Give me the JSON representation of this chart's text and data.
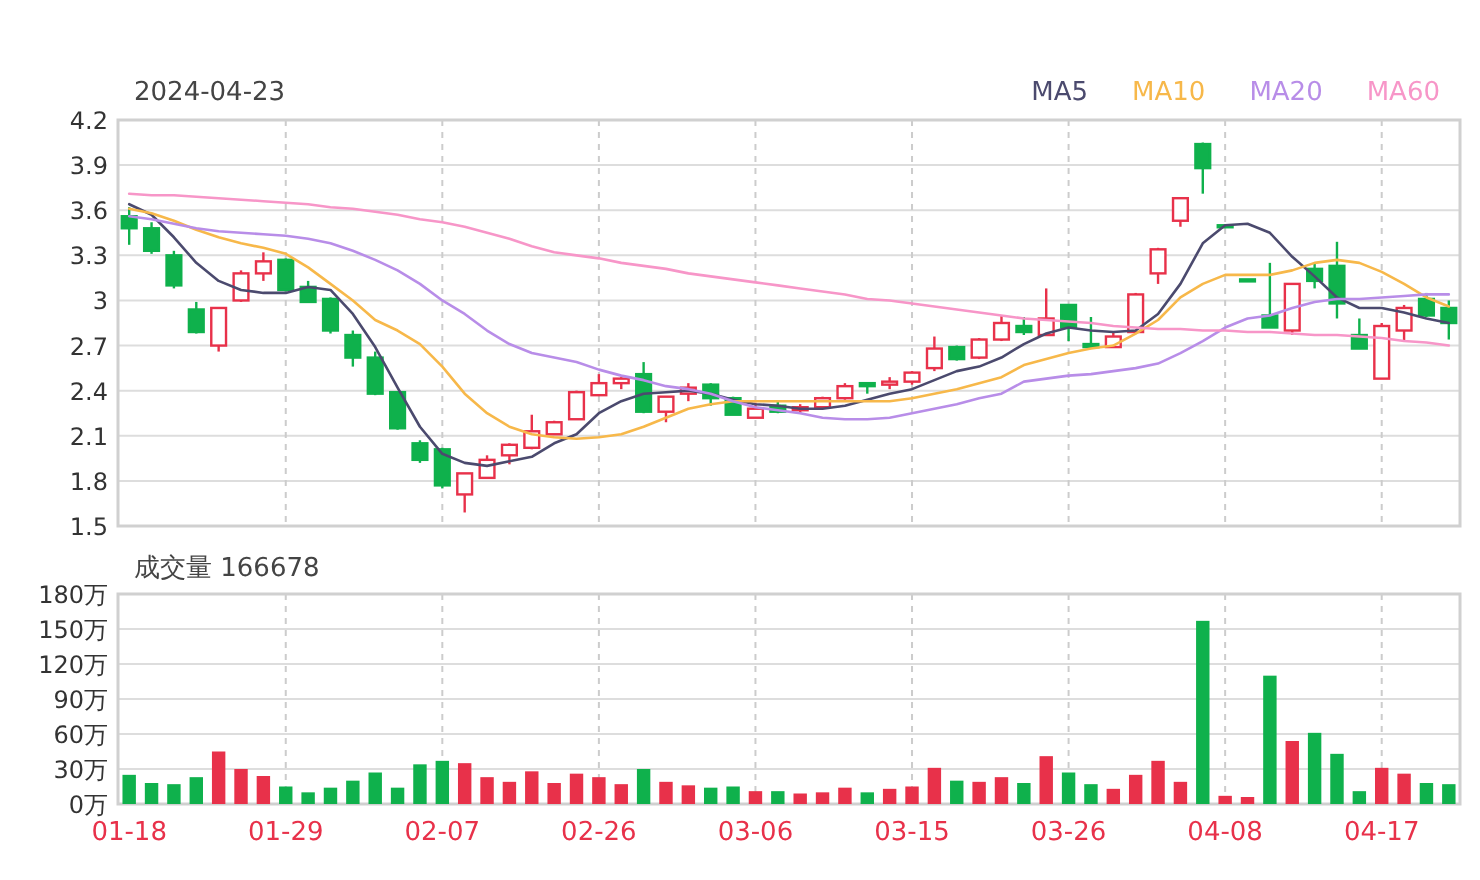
{
  "chart_data": [
    {
      "type": "candlestick",
      "title": "2024-04-23",
      "tick_labels": "y",
      "grid": true,
      "legend": "top right",
      "ohlc": [
        [
          3.56,
          3.62,
          3.37,
          3.48
        ],
        [
          3.48,
          3.52,
          3.31,
          3.33
        ],
        [
          3.3,
          3.33,
          3.08,
          3.1
        ],
        [
          2.94,
          2.99,
          2.78,
          2.79
        ],
        [
          2.7,
          2.95,
          2.66,
          2.95
        ],
        [
          3.0,
          3.2,
          2.99,
          3.18
        ],
        [
          3.18,
          3.32,
          3.13,
          3.26
        ],
        [
          3.27,
          3.28,
          3.06,
          3.07
        ],
        [
          3.09,
          3.13,
          2.99,
          2.99
        ],
        [
          3.01,
          3.02,
          2.78,
          2.8
        ],
        [
          2.77,
          2.8,
          2.56,
          2.62
        ],
        [
          2.62,
          2.66,
          2.37,
          2.38
        ],
        [
          2.39,
          2.39,
          2.14,
          2.15
        ],
        [
          2.05,
          2.07,
          1.92,
          1.94
        ],
        [
          2.01,
          2.02,
          1.75,
          1.77
        ],
        [
          1.71,
          1.85,
          1.59,
          1.85
        ],
        [
          1.82,
          1.97,
          1.82,
          1.94
        ],
        [
          1.97,
          2.05,
          1.91,
          2.04
        ],
        [
          2.02,
          2.24,
          2.01,
          2.13
        ],
        [
          2.11,
          2.2,
          2.11,
          2.19
        ],
        [
          2.21,
          2.4,
          2.21,
          2.39
        ],
        [
          2.37,
          2.51,
          2.37,
          2.45
        ],
        [
          2.45,
          2.49,
          2.41,
          2.48
        ],
        [
          2.51,
          2.59,
          2.25,
          2.26
        ],
        [
          2.26,
          2.36,
          2.19,
          2.36
        ],
        [
          2.38,
          2.45,
          2.33,
          2.42
        ],
        [
          2.44,
          2.45,
          2.3,
          2.35
        ],
        [
          2.35,
          2.36,
          2.24,
          2.24
        ],
        [
          2.22,
          2.32,
          2.22,
          2.28
        ],
        [
          2.3,
          2.33,
          2.25,
          2.26
        ],
        [
          2.27,
          2.31,
          2.25,
          2.29
        ],
        [
          2.29,
          2.36,
          2.29,
          2.35
        ],
        [
          2.35,
          2.45,
          2.34,
          2.43
        ],
        [
          2.45,
          2.45,
          2.38,
          2.43
        ],
        [
          2.44,
          2.49,
          2.41,
          2.46
        ],
        [
          2.46,
          2.53,
          2.44,
          2.52
        ],
        [
          2.55,
          2.76,
          2.53,
          2.68
        ],
        [
          2.69,
          2.7,
          2.6,
          2.61
        ],
        [
          2.62,
          2.75,
          2.61,
          2.74
        ],
        [
          2.74,
          2.9,
          2.73,
          2.85
        ],
        [
          2.83,
          2.89,
          2.77,
          2.79
        ],
        [
          2.77,
          3.08,
          2.77,
          2.88
        ],
        [
          2.97,
          2.97,
          2.73,
          2.82
        ],
        [
          2.71,
          2.89,
          2.69,
          2.69
        ],
        [
          2.69,
          2.79,
          2.69,
          2.76
        ],
        [
          2.79,
          3.05,
          2.78,
          3.04
        ],
        [
          3.18,
          3.35,
          3.11,
          3.34
        ],
        [
          3.53,
          3.68,
          3.49,
          3.68
        ],
        [
          4.04,
          4.05,
          3.71,
          3.88
        ],
        [
          3.5,
          3.5,
          3.5,
          3.5
        ],
        [
          3.14,
          3.14,
          3.14,
          3.14
        ],
        [
          2.9,
          3.25,
          2.82,
          2.82
        ],
        [
          2.8,
          3.11,
          2.77,
          3.11
        ],
        [
          3.21,
          3.25,
          3.08,
          3.13
        ],
        [
          3.23,
          3.39,
          2.88,
          2.98
        ],
        [
          2.77,
          2.88,
          2.68,
          2.68
        ],
        [
          2.48,
          2.85,
          2.48,
          2.83
        ],
        [
          2.8,
          2.97,
          2.73,
          2.95
        ],
        [
          3.01,
          3.05,
          2.89,
          2.9
        ],
        [
          2.95,
          3.0,
          2.74,
          2.85
        ]
      ],
      "colors": [
        "#0fb14c",
        "#0fb14c",
        "#0fb14c",
        "#0fb14c",
        "#e8314a",
        "#e8314a",
        "#e8314a",
        "#0fb14c",
        "#0fb14c",
        "#0fb14c",
        "#0fb14c",
        "#0fb14c",
        "#0fb14c",
        "#0fb14c",
        "#0fb14c",
        "#e8314a",
        "#e8314a",
        "#e8314a",
        "#e8314a",
        "#e8314a",
        "#e8314a",
        "#e8314a",
        "#e8314a",
        "#0fb14c",
        "#e8314a",
        "#e8314a",
        "#0fb14c",
        "#0fb14c",
        "#e8314a",
        "#0fb14c",
        "#e8314a",
        "#e8314a",
        "#e8314a",
        "#0fb14c",
        "#e8314a",
        "#e8314a",
        "#e8314a",
        "#0fb14c",
        "#e8314a",
        "#e8314a",
        "#0fb14c",
        "#e8314a",
        "#0fb14c",
        "#0fb14c",
        "#e8314a",
        "#e8314a",
        "#e8314a",
        "#e8314a",
        "#0fb14c",
        "#0fb14c",
        "#0fb14c",
        "#0fb14c",
        "#e8314a",
        "#0fb14c",
        "#0fb14c",
        "#0fb14c",
        "#e8314a",
        "#e8314a",
        "#0fb14c",
        "#0fb14c"
      ],
      "series": [
        {
          "type": "line",
          "name": "MA5",
          "color": "#4b4a6e",
          "values": [
            3.64,
            3.57,
            3.42,
            3.25,
            3.13,
            3.07,
            3.05,
            3.05,
            3.09,
            3.07,
            2.91,
            2.69,
            2.42,
            2.16,
            1.98,
            1.92,
            1.9,
            1.93,
            1.96,
            2.05,
            2.11,
            2.25,
            2.33,
            2.38,
            2.39,
            2.4,
            2.38,
            2.34,
            2.31,
            2.3,
            2.28,
            2.28,
            2.3,
            2.34,
            2.38,
            2.41,
            2.47,
            2.53,
            2.56,
            2.62,
            2.71,
            2.78,
            2.82,
            2.8,
            2.79,
            2.8,
            2.91,
            3.11,
            3.38,
            3.5,
            3.51,
            3.45,
            3.29,
            3.16,
            3.02,
            2.95,
            2.95,
            2.92,
            2.88,
            2.85
          ]
        },
        {
          "type": "line",
          "name": "MA10",
          "color": "#f7b84a",
          "values": [
            3.61,
            3.58,
            3.53,
            3.47,
            3.42,
            3.38,
            3.35,
            3.31,
            3.22,
            3.11,
            3.0,
            2.87,
            2.8,
            2.71,
            2.56,
            2.38,
            2.25,
            2.16,
            2.11,
            2.09,
            2.08,
            2.09,
            2.11,
            2.16,
            2.22,
            2.28,
            2.31,
            2.33,
            2.33,
            2.33,
            2.33,
            2.33,
            2.33,
            2.33,
            2.33,
            2.35,
            2.38,
            2.41,
            2.45,
            2.49,
            2.57,
            2.61,
            2.65,
            2.68,
            2.7,
            2.78,
            2.87,
            3.02,
            3.11,
            3.17,
            3.17,
            3.17,
            3.2,
            3.25,
            3.27,
            3.25,
            3.19,
            3.11,
            3.02,
            2.96
          ]
        },
        {
          "type": "line",
          "name": "MA20",
          "color": "#b88de8",
          "values": [
            3.56,
            3.54,
            3.51,
            3.48,
            3.46,
            3.45,
            3.44,
            3.43,
            3.41,
            3.38,
            3.33,
            3.27,
            3.2,
            3.11,
            3.0,
            2.91,
            2.8,
            2.71,
            2.65,
            2.62,
            2.59,
            2.54,
            2.5,
            2.47,
            2.43,
            2.41,
            2.38,
            2.33,
            2.29,
            2.27,
            2.25,
            2.22,
            2.21,
            2.21,
            2.22,
            2.25,
            2.28,
            2.31,
            2.35,
            2.38,
            2.46,
            2.48,
            2.5,
            2.51,
            2.53,
            2.55,
            2.58,
            2.65,
            2.73,
            2.82,
            2.88,
            2.9,
            2.95,
            2.99,
            3.01,
            3.01,
            3.02,
            3.03,
            3.04,
            3.04
          ]
        },
        {
          "type": "line",
          "name": "MA60",
          "color": "#f796c8",
          "values": [
            3.71,
            3.7,
            3.7,
            3.69,
            3.68,
            3.67,
            3.66,
            3.65,
            3.64,
            3.62,
            3.61,
            3.59,
            3.57,
            3.54,
            3.52,
            3.49,
            3.45,
            3.41,
            3.36,
            3.32,
            3.3,
            3.28,
            3.25,
            3.23,
            3.21,
            3.18,
            3.16,
            3.14,
            3.12,
            3.1,
            3.08,
            3.06,
            3.04,
            3.01,
            3.0,
            2.98,
            2.96,
            2.94,
            2.92,
            2.9,
            2.88,
            2.87,
            2.86,
            2.85,
            2.83,
            2.82,
            2.81,
            2.81,
            2.8,
            2.8,
            2.79,
            2.79,
            2.78,
            2.77,
            2.77,
            2.76,
            2.75,
            2.73,
            2.72,
            2.7
          ]
        }
      ],
      "ylim": [
        1.5,
        4.2
      ],
      "yticks": [
        1.5,
        1.8,
        2.1,
        2.4,
        2.7,
        3,
        3.3,
        3.6,
        3.9,
        4.2
      ]
    },
    {
      "type": "bar",
      "title": "成交量 166678",
      "grid": true,
      "categories": [
        "01-18",
        null,
        null,
        null,
        null,
        null,
        null,
        "01-29",
        null,
        null,
        null,
        null,
        null,
        null,
        "02-07",
        null,
        null,
        null,
        null,
        null,
        null,
        "02-26",
        null,
        null,
        null,
        null,
        null,
        null,
        "03-06",
        null,
        null,
        null,
        null,
        null,
        null,
        "03-15",
        null,
        null,
        null,
        null,
        null,
        null,
        "03-26",
        null,
        null,
        null,
        null,
        null,
        null,
        "04-08",
        null,
        null,
        null,
        null,
        null,
        null,
        "04-17",
        null,
        null,
        null
      ],
      "values": [
        25,
        18,
        17,
        23,
        45,
        30,
        24,
        15,
        10,
        14,
        20,
        27,
        14,
        34,
        37,
        35,
        23,
        19,
        28,
        18,
        26,
        23,
        17,
        30,
        19,
        16,
        14,
        15,
        11,
        11,
        9,
        10,
        14,
        10,
        13,
        15,
        31,
        20,
        19,
        23,
        18,
        41,
        27,
        17,
        13,
        25,
        37,
        19,
        157,
        7,
        6,
        110,
        54,
        61,
        43,
        11,
        31,
        26,
        18,
        17
      ],
      "colors": [
        "#0fb14c",
        "#0fb14c",
        "#0fb14c",
        "#0fb14c",
        "#e8314a",
        "#e8314a",
        "#e8314a",
        "#0fb14c",
        "#0fb14c",
        "#0fb14c",
        "#0fb14c",
        "#0fb14c",
        "#0fb14c",
        "#0fb14c",
        "#0fb14c",
        "#e8314a",
        "#e8314a",
        "#e8314a",
        "#e8314a",
        "#e8314a",
        "#e8314a",
        "#e8314a",
        "#e8314a",
        "#0fb14c",
        "#e8314a",
        "#e8314a",
        "#0fb14c",
        "#0fb14c",
        "#e8314a",
        "#0fb14c",
        "#e8314a",
        "#e8314a",
        "#e8314a",
        "#0fb14c",
        "#e8314a",
        "#e8314a",
        "#e8314a",
        "#0fb14c",
        "#e8314a",
        "#e8314a",
        "#0fb14c",
        "#e8314a",
        "#0fb14c",
        "#0fb14c",
        "#e8314a",
        "#e8314a",
        "#e8314a",
        "#e8314a",
        "#0fb14c",
        "#e8314a",
        "#e8314a",
        "#0fb14c",
        "#e8314a",
        "#0fb14c",
        "#0fb14c",
        "#0fb14c",
        "#e8314a",
        "#e8314a",
        "#0fb14c",
        "#0fb14c"
      ],
      "ylim": [
        0,
        180
      ],
      "yticks": [
        {
          "value": 0,
          "label": "0万"
        },
        {
          "value": 30,
          "label": "30万"
        },
        {
          "value": 60,
          "label": "60万"
        },
        {
          "value": 90,
          "label": "90万"
        },
        {
          "value": 120,
          "label": "120万"
        },
        {
          "value": 150,
          "label": "150万"
        },
        {
          "value": 180,
          "label": "180万"
        }
      ]
    }
  ]
}
